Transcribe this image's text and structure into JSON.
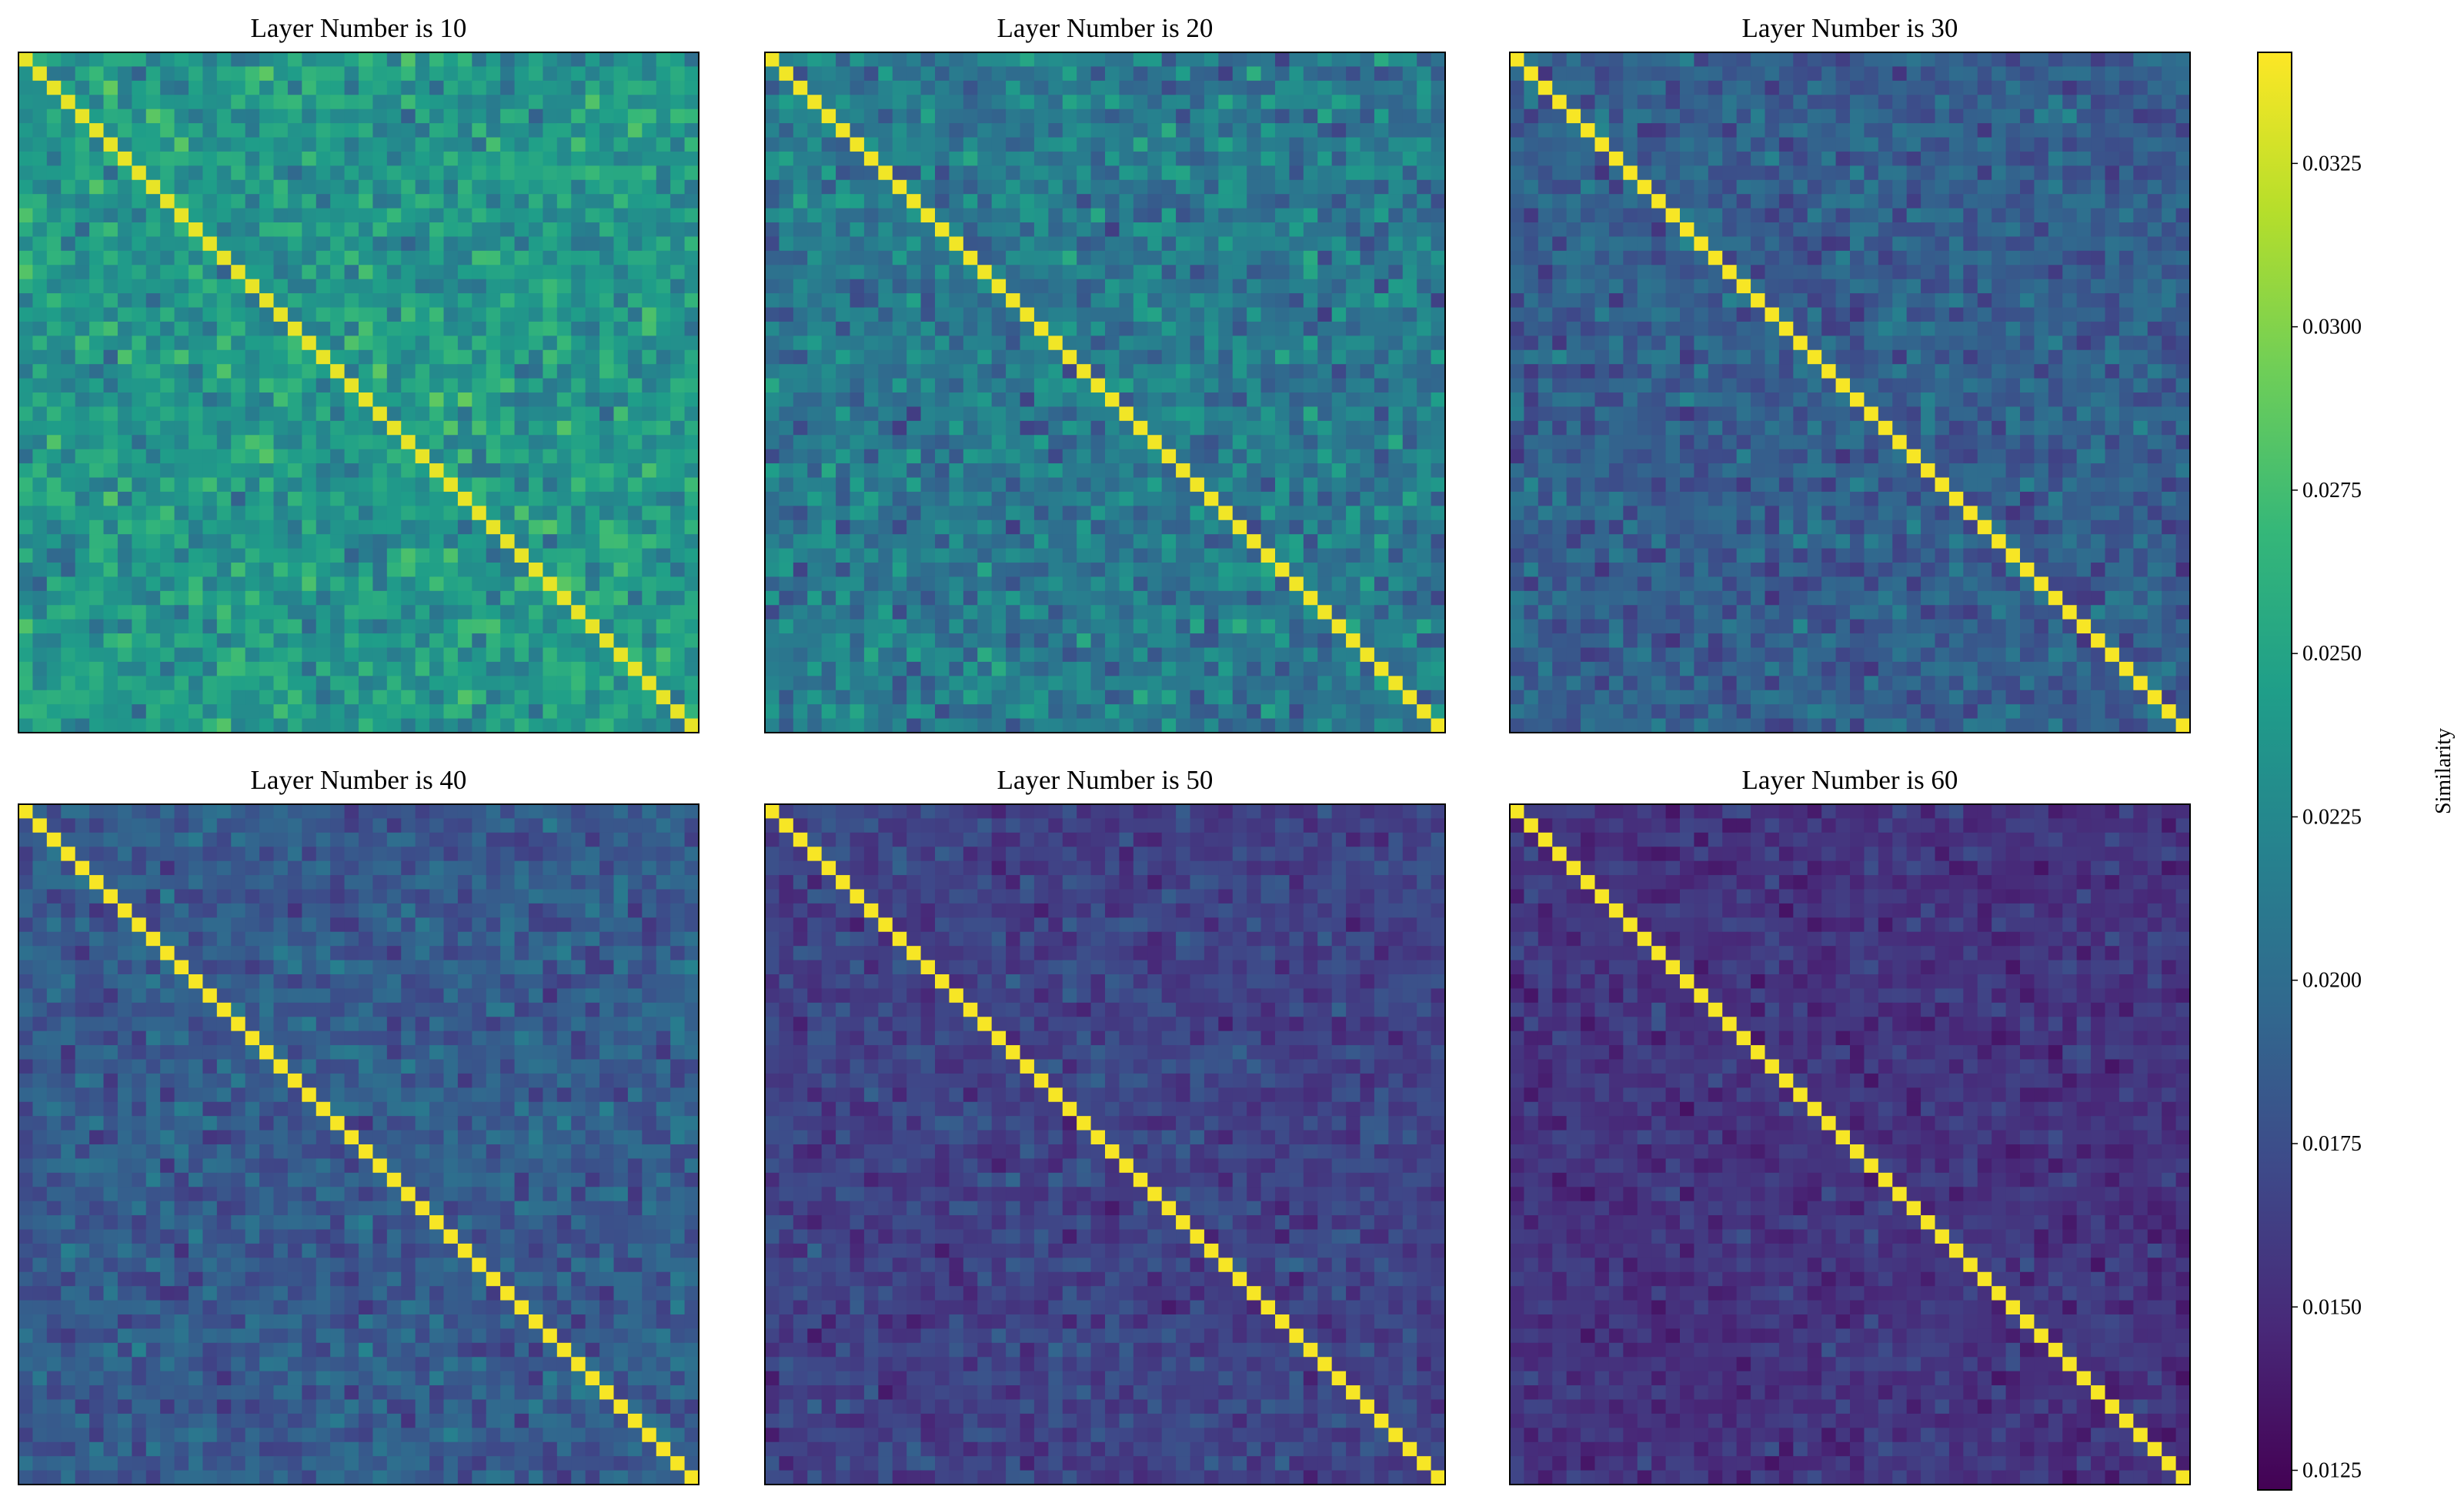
{
  "chart_data": {
    "type": "heatmap",
    "colormap": "viridis",
    "matrix_size": 48,
    "panels": [
      {
        "title": "Layer Number is 10",
        "diagonal_value": 0.0335,
        "offdiag_mean": 0.0238,
        "offdiag_spread": 0.0034
      },
      {
        "title": "Layer Number is 20",
        "diagonal_value": 0.0338,
        "offdiag_mean": 0.0212,
        "offdiag_spread": 0.0034
      },
      {
        "title": "Layer Number is 30",
        "diagonal_value": 0.034,
        "offdiag_mean": 0.0188,
        "offdiag_spread": 0.0026
      },
      {
        "title": "Layer Number is 40",
        "diagonal_value": 0.034,
        "offdiag_mean": 0.0185,
        "offdiag_spread": 0.0025
      },
      {
        "title": "Layer Number is 50",
        "diagonal_value": 0.034,
        "offdiag_mean": 0.0166,
        "offdiag_spread": 0.002
      },
      {
        "title": "Layer Number is 60",
        "diagonal_value": 0.034,
        "offdiag_mean": 0.0155,
        "offdiag_spread": 0.0017
      }
    ],
    "colorbar": {
      "label": "Similarity",
      "range": [
        0.0122,
        0.0342
      ],
      "ticks": [
        0.0125,
        0.015,
        0.0175,
        0.02,
        0.0225,
        0.025,
        0.0275,
        0.03,
        0.0325
      ],
      "tick_labels": [
        "0.0125",
        "0.0150",
        "0.0175",
        "0.0200",
        "0.0225",
        "0.0250",
        "0.0275",
        "0.0300",
        "0.0325"
      ]
    }
  }
}
